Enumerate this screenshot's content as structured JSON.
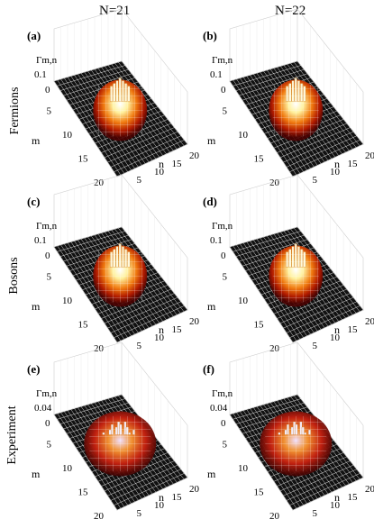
{
  "column_titles": [
    "N=21",
    "N=22"
  ],
  "row_labels": [
    "Fermions",
    "Bosons",
    "Experiment"
  ],
  "colors": {
    "grid_line": "#ffffff",
    "base": "#111111",
    "peak_low": "#7a0000",
    "peak_mid": "#e05000",
    "peak_high": "#fff7b0",
    "peak_top": "#ffffff"
  },
  "panels": [
    {
      "label": "(a)",
      "zlabel": "Γm,n",
      "ztick_top": "0.1",
      "ztick_bottom": "0",
      "m_ticks": [
        "5",
        "10",
        "15",
        "20"
      ],
      "n_ticks": [
        "5",
        "10",
        "15",
        "20"
      ],
      "m_label": "m",
      "n_label": "n"
    },
    {
      "label": "(b)",
      "zlabel": "Γm,n",
      "ztick_top": "0.1",
      "ztick_bottom": "0",
      "m_ticks": [
        "5",
        "10",
        "15",
        "20"
      ],
      "n_ticks": [
        "5",
        "10",
        "15",
        "20"
      ],
      "m_label": "m",
      "n_label": "n"
    },
    {
      "label": "(c)",
      "zlabel": "Γm,n",
      "ztick_top": "0.1",
      "ztick_bottom": "0",
      "m_ticks": [
        "5",
        "10",
        "15",
        "20"
      ],
      "n_ticks": [
        "5",
        "10",
        "15",
        "20"
      ],
      "m_label": "m",
      "n_label": "n"
    },
    {
      "label": "(d)",
      "zlabel": "Γm,n",
      "ztick_top": "0.1",
      "ztick_bottom": "0",
      "m_ticks": [
        "5",
        "10",
        "15",
        "20"
      ],
      "n_ticks": [
        "5",
        "10",
        "15",
        "20"
      ],
      "m_label": "m",
      "n_label": "n"
    },
    {
      "label": "(e)",
      "zlabel": "Γm,n",
      "ztick_top": "0.04",
      "ztick_bottom": "0",
      "m_ticks": [
        "5",
        "10",
        "15",
        "20"
      ],
      "n_ticks": [
        "5",
        "10",
        "15",
        "20"
      ],
      "m_label": "m",
      "n_label": "n"
    },
    {
      "label": "(f)",
      "zlabel": "Γm,n",
      "ztick_top": "0.04",
      "ztick_bottom": "0",
      "m_ticks": [
        "5",
        "10",
        "15",
        "20"
      ],
      "n_ticks": [
        "5",
        "10",
        "15",
        "20"
      ],
      "m_label": "m",
      "n_label": "n"
    }
  ]
}
